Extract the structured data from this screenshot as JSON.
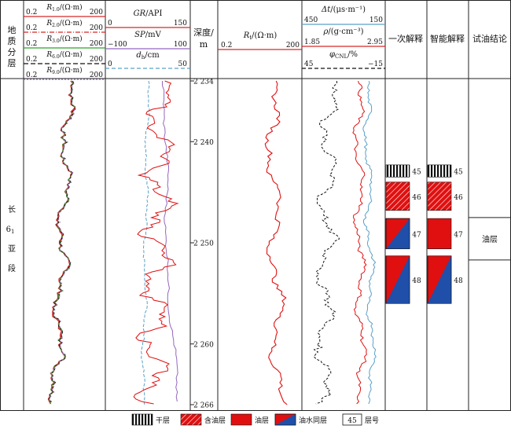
{
  "headers": {
    "strat": [
      "地",
      "质",
      "分",
      "层"
    ],
    "resist_curves": [
      {
        "name_main": "R",
        "name_sub": "1.0",
        "unit": "/(Ω·m)",
        "min": "0.2",
        "max": "200",
        "color": "#d62728",
        "dash": "none"
      },
      {
        "name_main": "R",
        "name_sub": "2.0",
        "unit": "/(Ω·m)",
        "min": "0.2",
        "max": "200",
        "color": "#d62728",
        "dash": "6 2 1 2"
      },
      {
        "name_main": "R",
        "name_sub": "3.0",
        "unit": "/(Ω·m)",
        "min": "0.2",
        "max": "200",
        "color": "#2ca02c",
        "dash": "none"
      },
      {
        "name_main": "R",
        "name_sub": "6.0",
        "unit": "/(Ω·m)",
        "min": "0.2",
        "max": "200",
        "color": "#111111",
        "dash": "6 3"
      },
      {
        "name_main": "R",
        "name_sub": "9.0",
        "unit": "/(Ω·m)",
        "min": "0.2",
        "max": "200",
        "color": "#9467bd",
        "dash": "2 2"
      }
    ],
    "gr": {
      "name": "GR",
      "unit": "/API",
      "min": "0",
      "max": "150",
      "color": "#d62728"
    },
    "sp": {
      "name": "SP",
      "unit": "/mV",
      "min": "−100",
      "max": "100",
      "color": "#9467bd"
    },
    "dh": {
      "name": "d",
      "sub": "h",
      "unit": "/cm",
      "min": "0",
      "max": "50",
      "color": "#5aa0c8"
    },
    "depth": {
      "line1": "深度/",
      "line2": "m"
    },
    "rt": {
      "name": "R",
      "sub": "t",
      "unit": "/(Ω·m)",
      "min": "0.2",
      "max": "200",
      "color": "#d62728"
    },
    "dt": {
      "name": "Δt",
      "unit": "/(μs·m⁻¹)",
      "min": "450",
      "max": "150",
      "color": "#5aa0c8"
    },
    "rho": {
      "name": "ρ",
      "unit": "/(g·cm⁻³)",
      "min": "1.85",
      "max": "2.95",
      "color": "#d62728"
    },
    "phi": {
      "name": "φ",
      "sub": "CNL",
      "unit": "/%",
      "min": "45",
      "max": "−15",
      "color": "#111111"
    },
    "col_interp1": "一次解释",
    "col_interp2": "智能解释",
    "col_conclusion": "试油结论"
  },
  "strat_body": {
    "chars": [
      "长",
      "6",
      "亚",
      "段"
    ],
    "sub": "1"
  },
  "depth_ticks": [
    {
      "value": 2234,
      "label": "2 234"
    },
    {
      "value": 2240,
      "label": "2 240"
    },
    {
      "value": 2250,
      "label": "2 250"
    },
    {
      "value": 2260,
      "label": "2 260"
    },
    {
      "value": 2266,
      "label": "2 266"
    }
  ],
  "depth_range": [
    2234,
    2266
  ],
  "interp1_layers": [
    {
      "top": 2242.3,
      "bottom": 2243.5,
      "type": "dry",
      "number": "45"
    },
    {
      "top": 2244.0,
      "bottom": 2246.8,
      "type": "oil_bearing",
      "number": "46"
    },
    {
      "top": 2247.6,
      "bottom": 2250.6,
      "type": "oil_water",
      "number": "47"
    },
    {
      "top": 2251.3,
      "bottom": 2256.0,
      "type": "oil_water",
      "number": "48"
    }
  ],
  "interp2_layers": [
    {
      "top": 2242.3,
      "bottom": 2243.5,
      "type": "dry",
      "number": "45"
    },
    {
      "top": 2244.0,
      "bottom": 2246.8,
      "type": "oil_bearing",
      "number": "46"
    },
    {
      "top": 2247.6,
      "bottom": 2250.6,
      "type": "oil",
      "number": "47"
    },
    {
      "top": 2251.3,
      "bottom": 2256.0,
      "type": "oil_water",
      "number": "48"
    }
  ],
  "conclusion": {
    "top": 2247.5,
    "bottom": 2251.7,
    "text": "油层"
  },
  "legend": [
    {
      "type": "dry",
      "label": "干层"
    },
    {
      "type": "oil_bearing",
      "label": "含油层"
    },
    {
      "type": "oil",
      "label": "油层"
    },
    {
      "type": "oil_water",
      "label": "油水同层"
    },
    {
      "type": "number",
      "label": "层号",
      "number": "45"
    }
  ],
  "colors": {
    "red": "#e01010",
    "blue": "#1f4fa8",
    "black": "#111111"
  }
}
